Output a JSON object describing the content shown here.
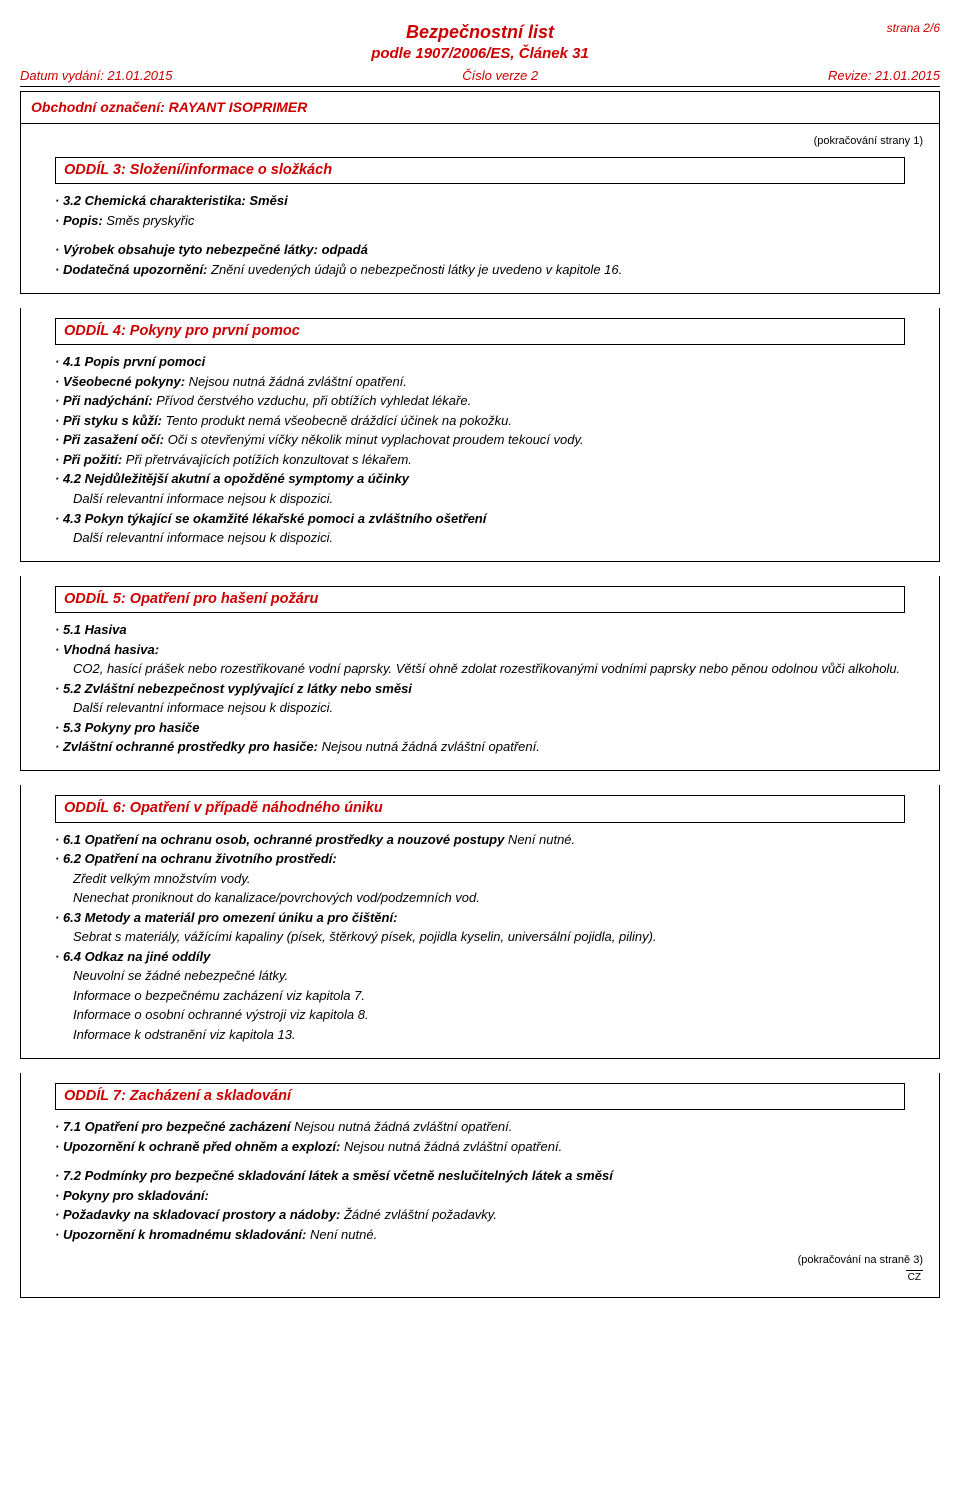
{
  "page_note": "strana 2/6",
  "header": {
    "sds_title": "Bezpečnostní list",
    "sds_reg": "podle 1907/2006/ES, Článek 31",
    "issue_date_label": "Datum vydání: 21.01.2015",
    "version_label": "Číslo verze 2",
    "revision_label": "Revize: 21.01.2015",
    "product_line": "Obchodní označení: RAYANT ISOPRIMER"
  },
  "cont_prev": "(pokračování  strany 1)",
  "sections": {
    "s3": {
      "title": "ODDÍL 3: Složení/informace o složkách",
      "l1": "· 3.2 Chemická charakteristika: Směsi",
      "l2lbl": "· Popis:",
      "l2val": " Směs pryskyřic",
      "l3": "· Výrobek obsahuje tyto nebezpečné látky: odpadá",
      "l4lbl": "· Dodatečná upozornění:",
      "l4val": " Znění uvedených údajů o nebezpečnosti látky je uvedeno v kapitole 16."
    },
    "s4": {
      "title": "ODDÍL 4: Pokyny pro první pomoc",
      "l1": "· 4.1 Popis první pomoci",
      "l2lbl": "· Všeobecné pokyny:",
      "l2val": " Nejsou nutná žádná zvláštní opatření.",
      "l3lbl": "· Při nadýchání:",
      "l3val": " Přívod čerstvého vzduchu, při obtížích vyhledat lékaře.",
      "l4lbl": "· Při styku s kůží:",
      "l4val": " Tento produkt nemá všeobecně dráždící účinek na pokožku.",
      "l5lbl": "· Při zasažení očí:",
      "l5val": " Oči s otevřenými víčky několik minut vyplachovat proudem tekoucí vody.",
      "l6lbl": "· Při požití:",
      "l6val": " Při přetrvávajících potížích konzultovat s lékařem.",
      "l7": "· 4.2 Nejdůležitější akutní a opožděné symptomy a účinky",
      "l7b": "Další relevantní informace nejsou k dispozici.",
      "l8": "· 4.3 Pokyn týkající se okamžité lékařské pomoci a zvláštního ošetření",
      "l8b": "Další relevantní informace nejsou k dispozici."
    },
    "s5": {
      "title": "ODDÍL 5: Opatření pro hašení požáru",
      "l1": "· 5.1 Hasiva",
      "l2": "· Vhodná hasiva:",
      "l2b": "CO2, hasící prášek nebo rozestřikované vodní paprsky. Větší ohně zdolat rozestřikovanými vodními paprsky nebo pěnou odolnou vůči alkoholu.",
      "l3": "· 5.2 Zvláštní nebezpečnost vyplývající z látky nebo směsi",
      "l3b": "Další relevantní informace nejsou k dispozici.",
      "l4": "· 5.3 Pokyny pro hasiče",
      "l5lbl": "· Zvláštní ochranné prostředky pro hasiče:",
      "l5val": " Nejsou nutná žádná zvláštní opatření."
    },
    "s6": {
      "title": "ODDÍL 6: Opatření v případě náhodného úniku",
      "l1lbl": "· 6.1 Opatření na ochranu osob, ochranné prostředky a nouzové postupy",
      "l1val": " Není nutné.",
      "l2": "· 6.2 Opatření na ochranu životního prostředí:",
      "l2b": "Zředit velkým množstvím vody.",
      "l2c": "Nenechat proniknout do kanalizace/povrchových vod/podzemních vod.",
      "l3": "· 6.3 Metody a materiál pro omezení úniku a pro čištění:",
      "l3b": "Sebrat s materiály, vážícími kapaliny (písek, štěrkový písek, pojidla kyselin, universální pojidla, piliny).",
      "l4": "· 6.4 Odkaz na jiné oddíly",
      "l4b": "Neuvolní se žádné nebezpečné látky.",
      "l4c": "Informace o bezpečnému zacházení viz kapitola 7.",
      "l4d": "Informace o osobní ochranné výstroji viz kapitola 8.",
      "l4e": "Informace k odstranění viz kapitola 13."
    },
    "s7": {
      "title": "ODDÍL 7: Zacházení a skladování",
      "l1lbl": "· 7.1 Opatření pro bezpečné zacházení",
      "l1val": " Nejsou nutná žádná zvláštní opatření.",
      "l2lbl": "· Upozornění k ochraně před ohněm a explozí:",
      "l2val": " Nejsou nutná žádná zvláštní opatření.",
      "l3": "· 7.2 Podmínky pro bezpečné skladování látek a směsí včetně neslučitelných látek a směsí",
      "l4": "· Pokyny pro skladování:",
      "l5lbl": "· Požadavky na skladovací prostory a nádoby:",
      "l5val": " Žádné zvláštní požadavky.",
      "l6lbl": "· Upozornění k hromadnému skladování:",
      "l6val": " Není nutné."
    }
  },
  "cont_next": "(pokračování na straně 3)",
  "cz": "CZ"
}
